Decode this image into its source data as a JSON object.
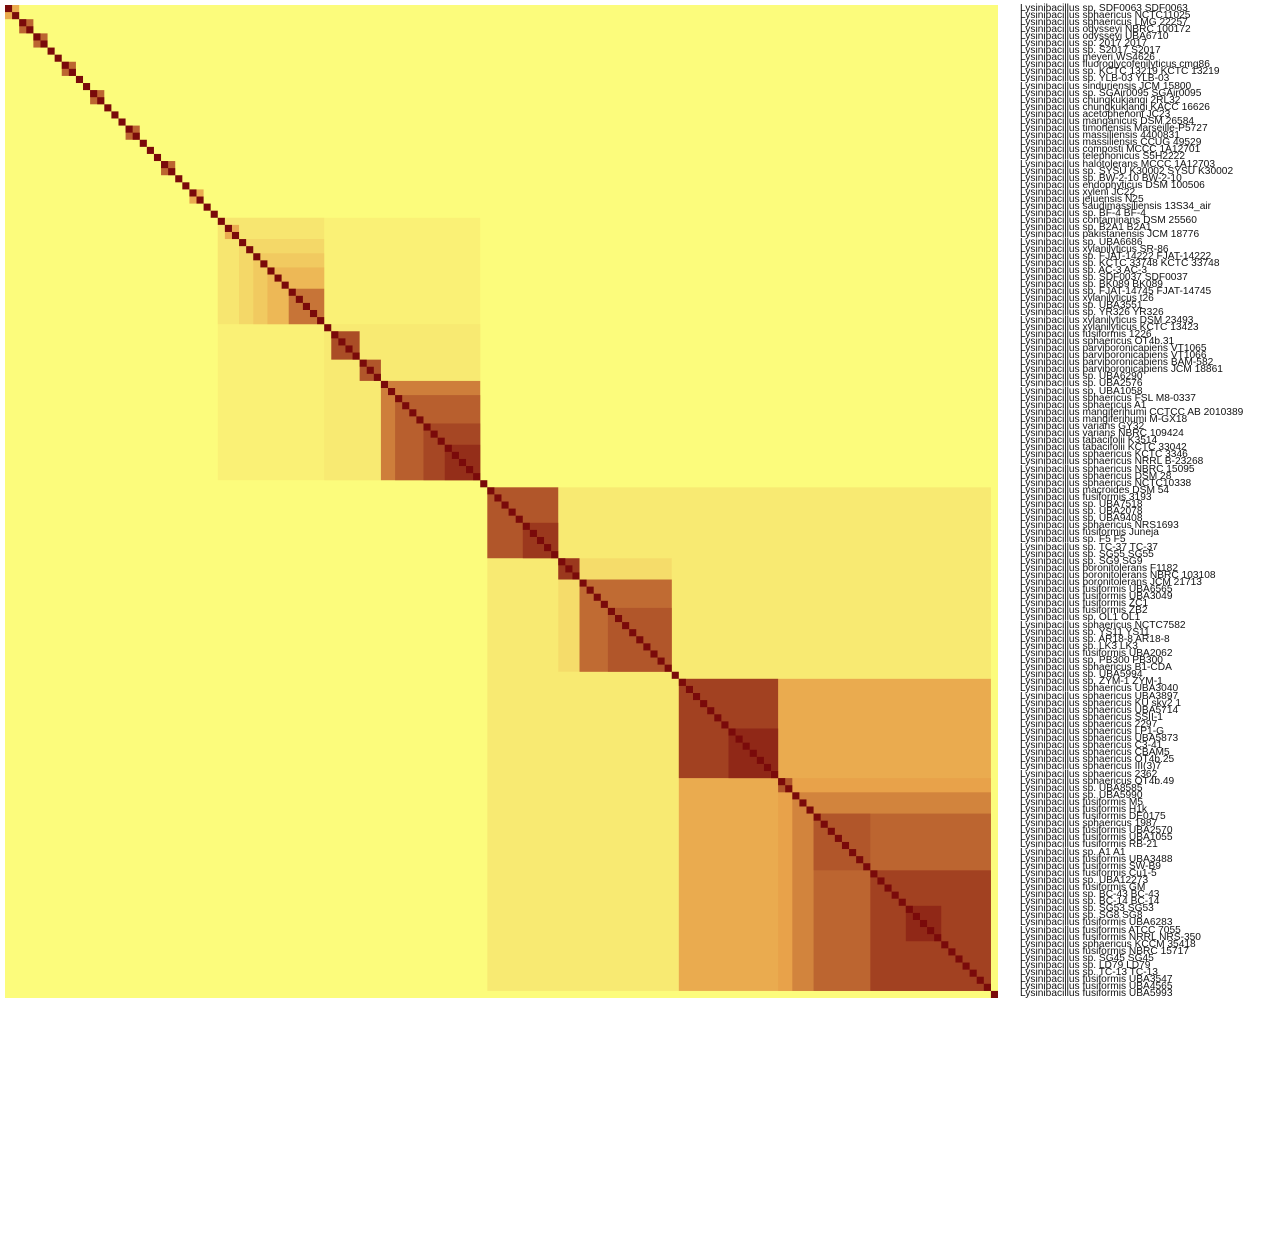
{
  "chart_data": {
    "type": "heatmap",
    "title": "",
    "xlabel": "",
    "ylabel": "",
    "legend": "none",
    "colors": {
      "low": "#fcfc7c",
      "mid": "#e8a24a",
      "high": "#7a0a0a"
    },
    "labels": [
      "Lysinibacillus sp. SDF0063 SDF0063",
      "Lysinibacillus sphaericus NCTC11025",
      "Lysinibacillus sphaericus LMG 22257",
      "Lysinibacillus odysseyi NBRC 100172",
      "Lysinibacillus odysseyi UBA6710",
      "Lysinibacillus sp. 2017 2017",
      "Lysinibacillus sp. S2017 S2017",
      "Lysinibacillus meyeri WS4626",
      "Lysinibacillus fluoroglycofenilyticus cmg86",
      "Lysinibacillus sp. KCTC 13219 KCTC 13219",
      "Lysinibacillus sp. YLB-03 YLB-03",
      "Lysinibacillus sinduriensis JCM 15800",
      "Lysinibacillus sp. SGAir0095 SGAir0095",
      "Lysinibacillus chungkukjangi 2RL32",
      "Lysinibacillus chungkukjangi KACC 16626",
      "Lysinibacillus acetophenoni JC23",
      "Lysinibacillus manganicus DSM 26584",
      "Lysinibacillus timonensis Marseille-P5727",
      "Lysinibacillus massiliensis 4400831",
      "Lysinibacillus massiliensis CCUG 49529",
      "Lysinibacillus composti MCCC 1A12701",
      "Lysinibacillus telephonicus S5H2222",
      "Lysinibacillus halotolerans MCCC 1A12703",
      "Lysinibacillus sp. SYSU K30002 SYSU K30002",
      "Lysinibacillus sp. BW-2-10 BW-2-10",
      "Lysinibacillus endophyticus DSM 100506",
      "Lysinibacillus xyleni JC22",
      "Lysinibacillus jejuensis N25",
      "Lysinibacillus saudimassiliensis 13S34_air",
      "Lysinibacillus sp. BF-4 BF-4",
      "Lysinibacillus contaminans DSM 25560",
      "Lysinibacillus sp. B2A1 B2A1",
      "Lysinibacillus pakistanensis JCM 18776",
      "Lysinibacillus sp. UBA6686",
      "Lysinibacillus xylanilyticus SR-86",
      "Lysinibacillus sp. FJAT-14222 FJAT-14222",
      "Lysinibacillus sp. KCTC 33748 KCTC 33748",
      "Lysinibacillus sp. AC-3 AC-3",
      "Lysinibacillus sp. SDF0037 SDF0037",
      "Lysinibacillus sp. BK089 BK089",
      "Lysinibacillus sp. FJAT-14745 FJAT-14745",
      "Lysinibacillus xylanilyticus t26",
      "Lysinibacillus sp. UBA3551",
      "Lysinibacillus sp. YR326 YR326",
      "Lysinibacillus xylanilyticus DSM 23493",
      "Lysinibacillus xylanilyticus KCTC 13423",
      "Lysinibacillus fusiformis 1226",
      "Lysinibacillus sphaericus OT4b.31",
      "Lysinibacillus parviboronicapiens VT1065",
      "Lysinibacillus parviboronicapiens VT1066",
      "Lysinibacillus parviboronicapiens BAM-582",
      "Lysinibacillus parviboronicapiens JCM 18861",
      "Lysinibacillus sp. UBA6290",
      "Lysinibacillus sp. UBA2576",
      "Lysinibacillus sp. UBA1058",
      "Lysinibacillus sphaericus FSL M8-0337",
      "Lysinibacillus sphaericus A1",
      "Lysinibacillus mangiferihumi CCTCC AB 2010389",
      "Lysinibacillus mangiferihumi M-GX18",
      "Lysinibacillus varians GY32",
      "Lysinibacillus varians NBRC 109424",
      "Lysinibacillus tabacifolii K3514",
      "Lysinibacillus tabacifolii KCTC 33042",
      "Lysinibacillus sphaericus KCTC 3346",
      "Lysinibacillus sphaericus NRRL B-23268",
      "Lysinibacillus sphaericus NBRC 15095",
      "Lysinibacillus sphaericus DSM 28",
      "Lysinibacillus sphaericus NCTC10338",
      "Lysinibacillus macroides DSM 54",
      "Lysinibacillus fusiformis 3193",
      "Lysinibacillus sp. UBA7518",
      "Lysinibacillus sp. UBA2078",
      "Lysinibacillus sp. UBA9408",
      "Lysinibacillus sphaericus NRS1693",
      "Lysinibacillus fusiformis Juneja",
      "Lysinibacillus sp. F5 F5",
      "Lysinibacillus sp. TC-37 TC-37",
      "Lysinibacillus sp. SG55 SG55",
      "Lysinibacillus sp. SG9 SG9",
      "Lysinibacillus boronitolerans F1182",
      "Lysinibacillus boronitolerans NBRC 103108",
      "Lysinibacillus boronitolerans JCM 21713",
      "Lysinibacillus fusiformis UBA6565",
      "Lysinibacillus fusiformis UBA3049",
      "Lysinibacillus fusiformis ZC1",
      "Lysinibacillus fusiformis ZB2",
      "Lysinibacillus sp. OL1 OL1",
      "Lysinibacillus sphaericus NCTC7582",
      "Lysinibacillus sp. YS11 YS11",
      "Lysinibacillus sp. AR18-8 AR18-8",
      "Lysinibacillus sp. LK3 LK3",
      "Lysinibacillus fusiformis UBA2062",
      "Lysinibacillus sp. PB300 PB300",
      "Lysinibacillus sphaericus B1-CDA",
      "Lysinibacillus sp. UBA5994",
      "Lysinibacillus sp. ZYM-1 ZYM-1",
      "Lysinibacillus sphaericus UBA3040",
      "Lysinibacillus sphaericus UBA3897",
      "Lysinibacillus sphaericus KU sky2 1",
      "Lysinibacillus sphaericus UBA5714",
      "Lysinibacillus sphaericus SSII-1",
      "Lysinibacillus sphaericus 2297",
      "Lysinibacillus sphaericus LP1-G",
      "Lysinibacillus sphaericus UBA5873",
      "Lysinibacillus sphaericus C3-41",
      "Lysinibacillus sphaericus CBAM5",
      "Lysinibacillus sphaericus OT4b.25",
      "Lysinibacillus sphaericus III(3)7",
      "Lysinibacillus sphaericus 2362",
      "Lysinibacillus sphaericus OT4b.49",
      "Lysinibacillus sp. UBA8585",
      "Lysinibacillus sp. UBA5990",
      "Lysinibacillus fusiformis M5",
      "Lysinibacillus fusiformis H1k",
      "Lysinibacillus fusiformis DE0175",
      "Lysinibacillus sphaericus 1987",
      "Lysinibacillus fusiformis UBA2570",
      "Lysinibacillus fusiformis UBA1055",
      "Lysinibacillus fusiformis RB-21",
      "Lysinibacillus sp. A1 A1",
      "Lysinibacillus fusiformis UBA3488",
      "Lysinibacillus fusiformis SW-B9",
      "Lysinibacillus fusiformis Cu1-5",
      "Lysinibacillus sp. UBA12273",
      "Lysinibacillus fusiformis GM",
      "Lysinibacillus sp. BC-43 BC-43",
      "Lysinibacillus sp. BC-14 BC-14",
      "Lysinibacillus sp. SG53 SG53",
      "Lysinibacillus sp. SG8 SG8",
      "Lysinibacillus fusiformis UBA6283",
      "Lysinibacillus fusiformis ATCC 7055",
      "Lysinibacillus fusiformis NRRL NRS-350",
      "Lysinibacillus sphaericus KCCM 35418",
      "Lysinibacillus fusiformis NBRC 15717",
      "Lysinibacillus sp. SG45 SG45",
      "Lysinibacillus sp. LD79 LD79",
      "Lysinibacillus sp. TC-13 TC-13",
      "Lysinibacillus fusiformis UBA3547",
      "Lysinibacillus fusiformis UBA4565",
      "Lysinibacillus fusiformis UBA5993"
    ],
    "similarity_levels": {
      "background": 0.0,
      "faint": 0.08,
      "light": 0.2,
      "medium": 0.45,
      "strong": 0.7,
      "very_strong": 0.85,
      "identity": 1.0
    },
    "blocks": [
      {
        "from": 1,
        "to": 2,
        "level": 0.45
      },
      {
        "from": 3,
        "to": 4,
        "level": 0.7
      },
      {
        "from": 5,
        "to": 6,
        "level": 0.7
      },
      {
        "from": 9,
        "to": 10,
        "level": 0.7
      },
      {
        "from": 13,
        "to": 14,
        "level": 0.7
      },
      {
        "from": 18,
        "to": 19,
        "level": 0.7
      },
      {
        "from": 23,
        "to": 24,
        "level": 0.7
      },
      {
        "from": 27,
        "to": 28,
        "level": 0.45
      },
      {
        "from": 31,
        "to": 67,
        "level": 0.06
      },
      {
        "from": 31,
        "to": 45,
        "level": 0.12
      },
      {
        "from": 32,
        "to": 33,
        "level": 0.45
      },
      {
        "from": 34,
        "to": 45,
        "level": 0.2
      },
      {
        "from": 36,
        "to": 45,
        "level": 0.28
      },
      {
        "from": 38,
        "to": 45,
        "level": 0.38
      },
      {
        "from": 41,
        "to": 45,
        "level": 0.65
      },
      {
        "from": 46,
        "to": 67,
        "level": 0.1
      },
      {
        "from": 47,
        "to": 50,
        "level": 0.78
      },
      {
        "from": 51,
        "to": 53,
        "level": 0.75
      },
      {
        "from": 54,
        "to": 67,
        "level": 0.62
      },
      {
        "from": 56,
        "to": 67,
        "level": 0.72
      },
      {
        "from": 60,
        "to": 67,
        "level": 0.8
      },
      {
        "from": 63,
        "to": 67,
        "level": 0.88
      },
      {
        "from": 69,
        "to": 139,
        "level": 0.1
      },
      {
        "from": 69,
        "to": 78,
        "level": 0.75
      },
      {
        "from": 74,
        "to": 78,
        "level": 0.85
      },
      {
        "from": 79,
        "to": 94,
        "level": 0.18
      },
      {
        "from": 79,
        "to": 81,
        "level": 0.85
      },
      {
        "from": 82,
        "to": 94,
        "level": 0.55
      },
      {
        "from": 82,
        "to": 94,
        "level": 0.68
      },
      {
        "from": 86,
        "to": 94,
        "level": 0.75
      },
      {
        "from": 96,
        "to": 139,
        "level": 0.45
      },
      {
        "from": 96,
        "to": 109,
        "level": 0.82
      },
      {
        "from": 103,
        "to": 109,
        "level": 0.9
      },
      {
        "from": 110,
        "to": 139,
        "level": 0.5
      },
      {
        "from": 110,
        "to": 111,
        "level": 0.75
      },
      {
        "from": 112,
        "to": 139,
        "level": 0.6
      },
      {
        "from": 115,
        "to": 139,
        "level": 0.7
      },
      {
        "from": 115,
        "to": 122,
        "level": 0.75
      },
      {
        "from": 123,
        "to": 139,
        "level": 0.82
      },
      {
        "from": 128,
        "to": 132,
        "level": 0.9
      }
    ]
  }
}
